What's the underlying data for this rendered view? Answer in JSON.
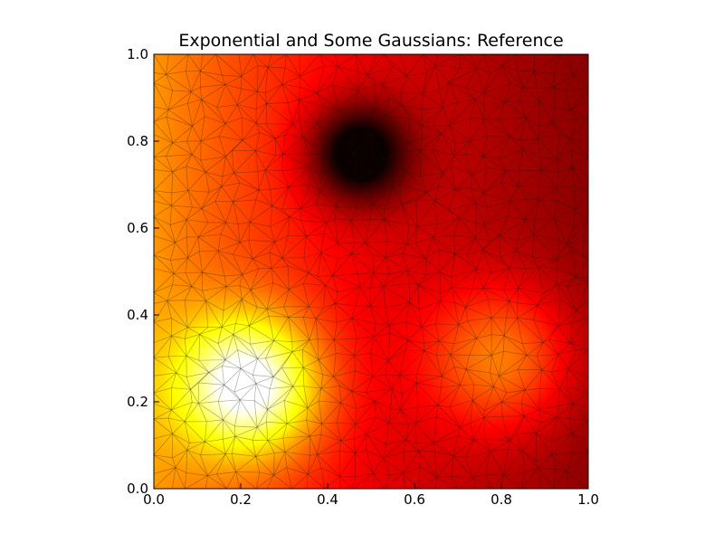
{
  "chart_data": {
    "type": "heatmap",
    "title": "Exponential and Some Gaussians: Reference",
    "xlabel": "",
    "ylabel": "",
    "xlim": [
      0.0,
      1.0
    ],
    "ylim": [
      0.0,
      1.0
    ],
    "x_ticks": [
      "0.0",
      "0.2",
      "0.4",
      "0.6",
      "0.8",
      "1.0"
    ],
    "y_ticks": [
      "0.0",
      "0.2",
      "0.4",
      "0.6",
      "0.8",
      "1.0"
    ],
    "colormap": "hot",
    "grid": false,
    "legend": "none",
    "overlay": "triangular mesh (semi-transparent dark edges)",
    "field": {
      "base": "exponential decay in x (bright at x=0, dark at x=1)",
      "features": [
        {
          "kind": "bright gaussian",
          "center": [
            0.22,
            0.24
          ],
          "peak": "white"
        },
        {
          "kind": "bright gaussian",
          "center": [
            0.8,
            0.3
          ],
          "peak": "red"
        },
        {
          "kind": "dark gaussian",
          "center": [
            0.47,
            0.77
          ],
          "peak": "black"
        }
      ]
    }
  }
}
